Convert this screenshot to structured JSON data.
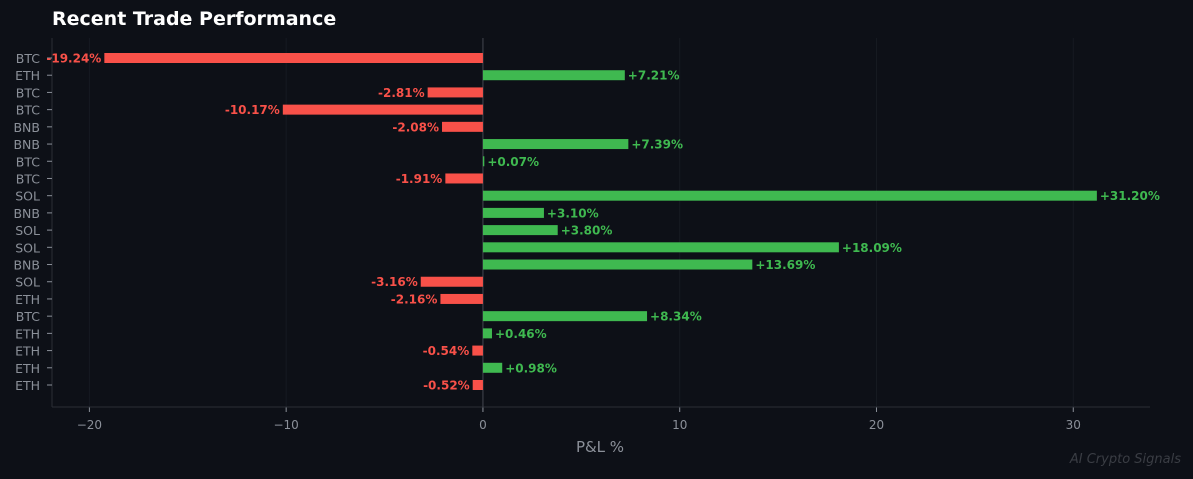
{
  "chart_data": {
    "type": "bar",
    "orientation": "horizontal",
    "title": "Recent Trade Performance",
    "xlabel": "P&L %",
    "ylabel": "",
    "xlim": [
      -21.9,
      33.9
    ],
    "xticks": [
      -20,
      -10,
      0,
      10,
      20,
      30
    ],
    "grid": true,
    "categories": [
      "BTC",
      "ETH",
      "BTC",
      "BTC",
      "BNB",
      "BNB",
      "BTC",
      "BTC",
      "SOL",
      "BNB",
      "SOL",
      "SOL",
      "BNB",
      "SOL",
      "ETH",
      "BTC",
      "ETH",
      "ETH",
      "ETH",
      "ETH"
    ],
    "values": [
      -19.24,
      7.21,
      -2.81,
      -10.17,
      -2.08,
      7.39,
      0.07,
      -1.91,
      31.2,
      3.1,
      3.8,
      18.09,
      13.69,
      -3.16,
      -2.16,
      8.34,
      0.46,
      -0.54,
      0.98,
      -0.52
    ],
    "data_labels": [
      "-19.24%",
      "+7.21%",
      "-2.81%",
      "-10.17%",
      "-2.08%",
      "+7.39%",
      "+0.07%",
      "-1.91%",
      "+31.20%",
      "+3.10%",
      "+3.80%",
      "+18.09%",
      "+13.69%",
      "-3.16%",
      "-2.16%",
      "+8.34%",
      "+0.46%",
      "-0.54%",
      "+0.98%",
      "-0.52%"
    ],
    "colors": {
      "positive": "#3fb950",
      "negative": "#f85149",
      "background": "#0d1017",
      "axis": "#2a2e36",
      "text": "#8b9099"
    }
  },
  "watermark": "AI Crypto Signals"
}
